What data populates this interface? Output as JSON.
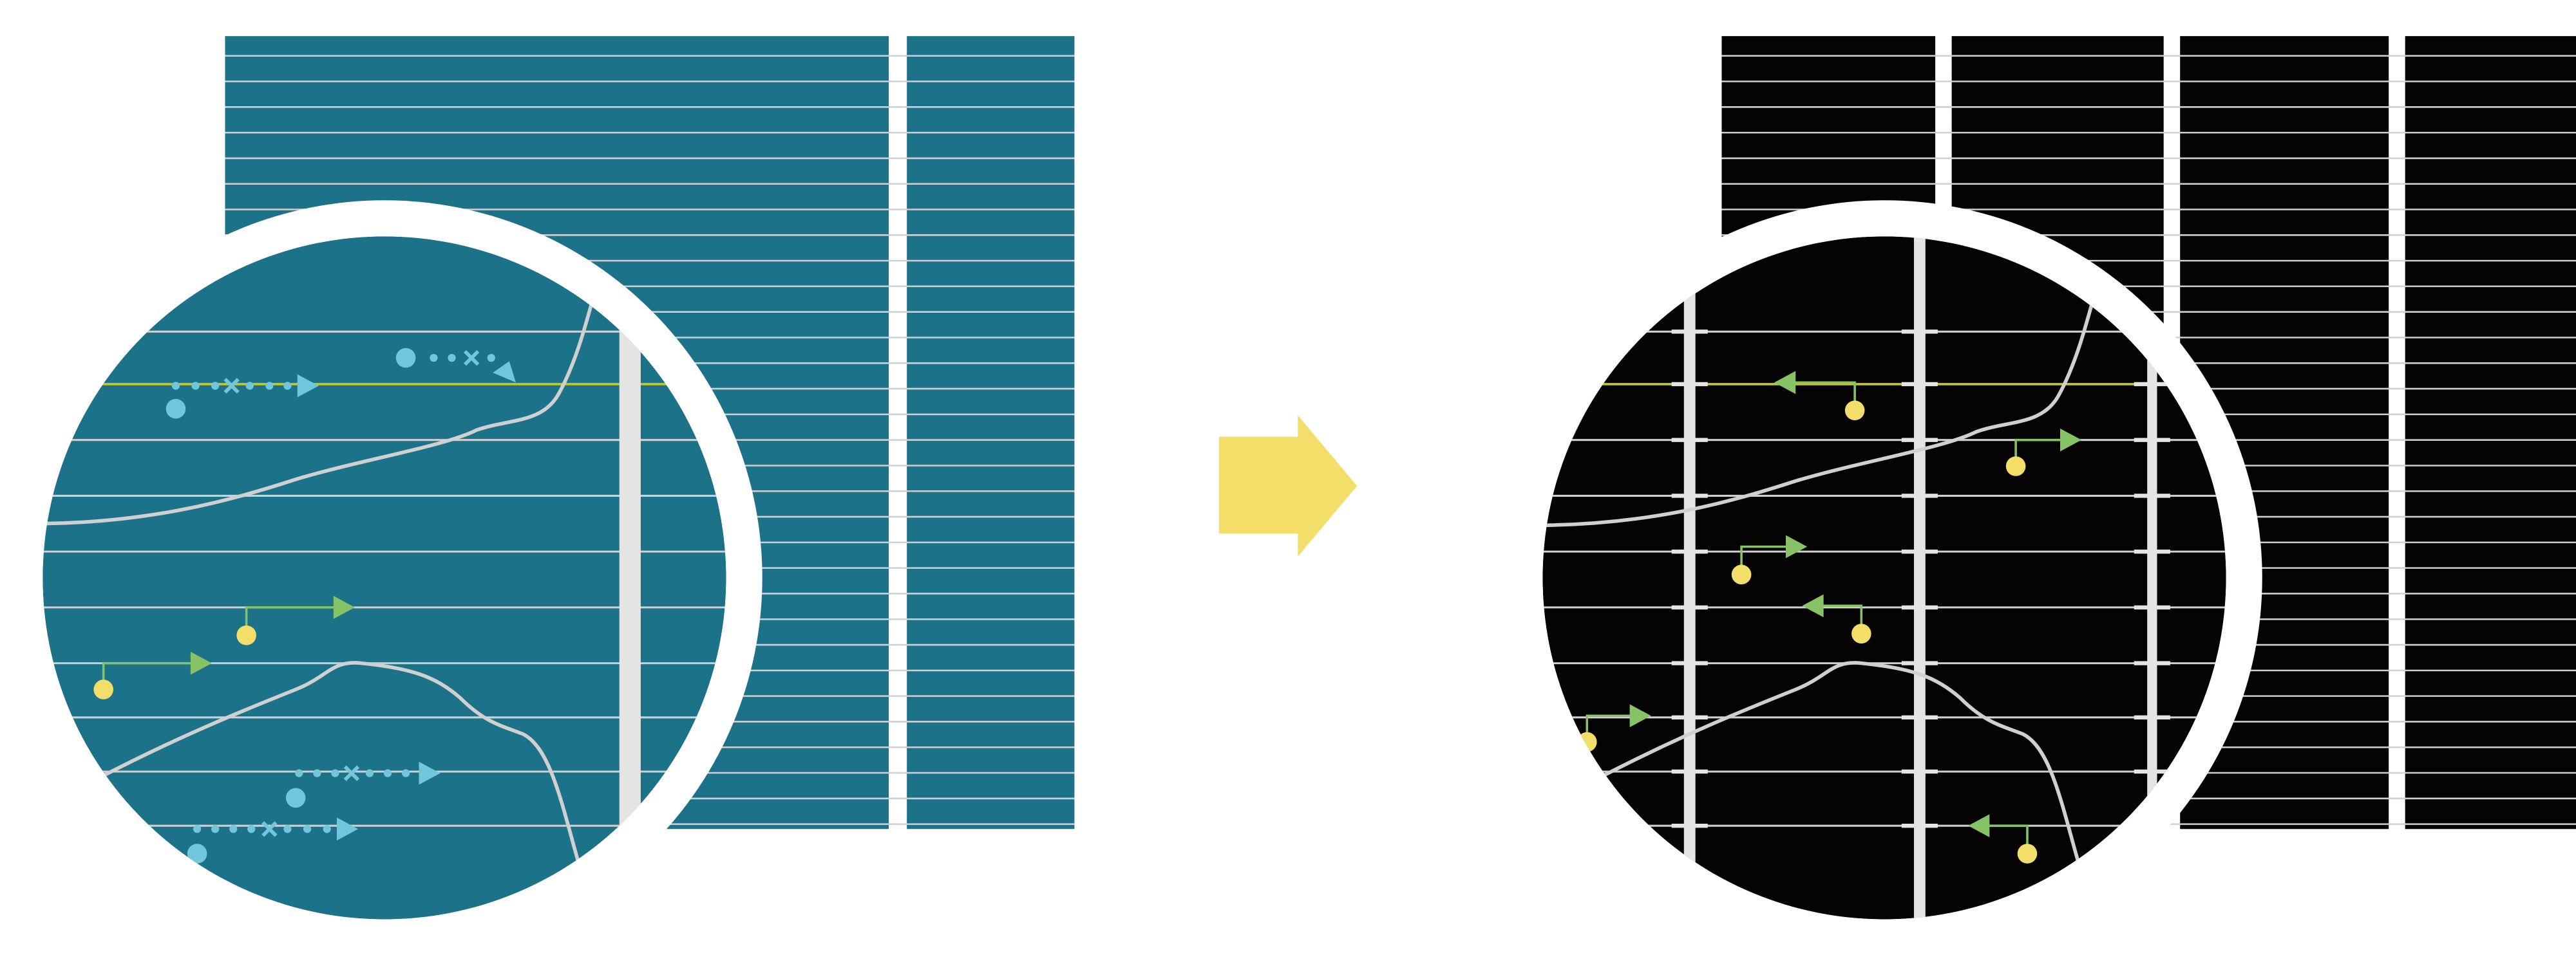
{
  "colors": {
    "before_background": "#1b7289",
    "after_background": "#050303",
    "grid_line": "#d0d0d0",
    "bar": "#e4e4e2",
    "highlight_line": "#c8c81e",
    "cyan_marker": "#72c6dc",
    "green_arrow": "#86c266",
    "yellow_dot": "#f3de6a",
    "transition_arrow": "#f3de6a",
    "ring": "#ffffff"
  },
  "panels": [
    {
      "id": "before",
      "label": ""
    },
    {
      "id": "after",
      "label": ""
    }
  ],
  "icons": {
    "transition": "right-arrow-icon",
    "magnifier": "magnifier-circle-icon"
  }
}
